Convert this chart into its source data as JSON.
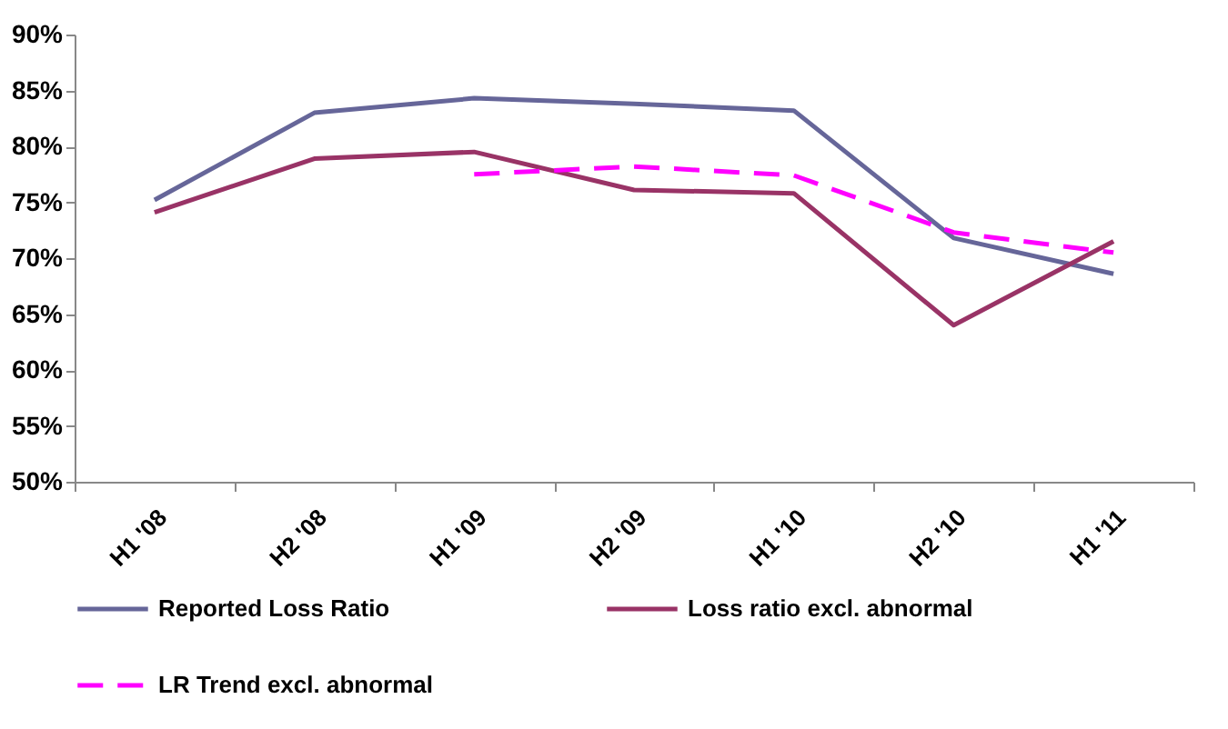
{
  "chart_data": {
    "type": "line",
    "categories": [
      "H1 '08",
      "H2 '08",
      "H1 '09",
      "H2 '09",
      "H1 '10",
      "H2 '10",
      "H1 '11"
    ],
    "series": [
      {
        "name": "Reported Loss Ratio",
        "color": "#666699",
        "line_style": "solid",
        "values": [
          75.2,
          83.0,
          84.3,
          83.8,
          83.2,
          71.8,
          68.6
        ]
      },
      {
        "name": "Loss ratio excl. abnormal",
        "color": "#993366",
        "line_style": "solid",
        "values": [
          74.1,
          78.9,
          79.5,
          76.1,
          75.8,
          64.0,
          71.5
        ]
      },
      {
        "name": "LR Trend excl. abnormal",
        "color": "#ff00ff",
        "line_style": "dashed",
        "values": [
          null,
          null,
          77.5,
          78.2,
          77.4,
          72.3,
          70.5
        ]
      }
    ],
    "ylim": [
      50,
      90
    ],
    "yticks": [
      {
        "value": 50,
        "label": "50%"
      },
      {
        "value": 55,
        "label": "55%"
      },
      {
        "value": 60,
        "label": "60%"
      },
      {
        "value": 65,
        "label": "65%"
      },
      {
        "value": 70,
        "label": "70%"
      },
      {
        "value": 75,
        "label": "75%"
      },
      {
        "value": 80,
        "label": "80%"
      },
      {
        "value": 85,
        "label": "85%"
      },
      {
        "value": 90,
        "label": "90%"
      }
    ],
    "grid": false,
    "legend": "bottom"
  }
}
